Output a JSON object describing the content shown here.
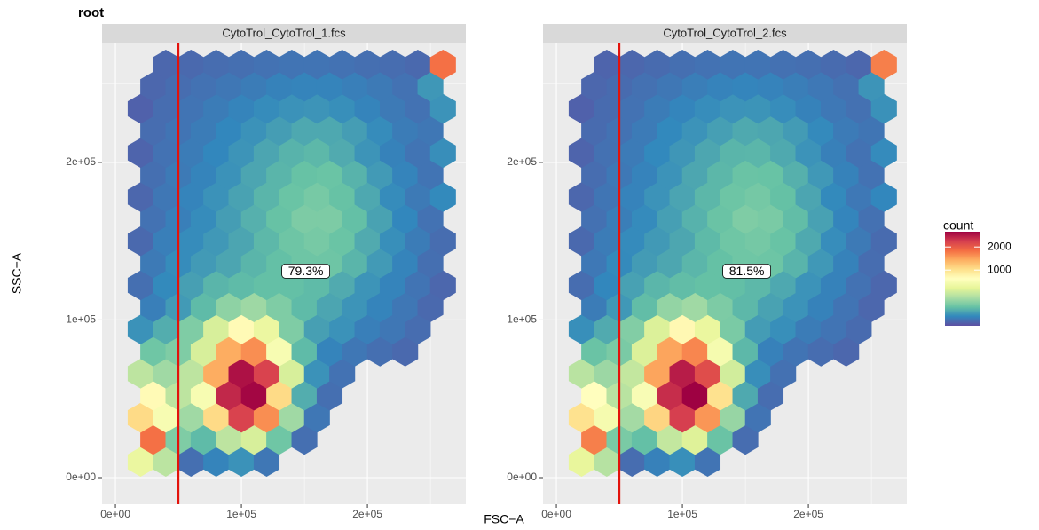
{
  "chart_data": {
    "type": "hexbin",
    "title": "root",
    "xlabel": "FSC−A",
    "ylabel": "SSC−A",
    "xlim": [
      -10600,
      278100
    ],
    "ylim": [
      -16900,
      276000
    ],
    "xticks": [
      {
        "value": 0,
        "label": "0e+00"
      },
      {
        "value": 100000,
        "label": "1e+05"
      },
      {
        "value": 200000,
        "label": "2e+05"
      }
    ],
    "yticks": [
      {
        "value": 0,
        "label": "0e+00"
      },
      {
        "value": 100000,
        "label": "1e+05"
      },
      {
        "value": 200000,
        "label": "2e+05"
      }
    ],
    "grid": true,
    "gate_x": 50000,
    "gate_color": "#e3120b",
    "legend_title": "count",
    "legend_position": "right",
    "fill_trans": "sqrt",
    "fill_lim": [
      0,
      2850
    ],
    "legend_ticks": [
      1000,
      2000
    ],
    "colors": [
      "#5e4fa2",
      "#3288bd",
      "#66c2a5",
      "#abdda4",
      "#e6f598",
      "#ffffbf",
      "#fee08b",
      "#fdae61",
      "#f46d43",
      "#d53e4f",
      "#9e0142"
    ],
    "hex_rows": [
      {
        "y": 10000,
        "x": [
          20000,
          40000,
          60000,
          80000,
          100000,
          120000
        ]
      },
      {
        "y": 24000,
        "x": [
          30000,
          50000,
          70000,
          90000,
          110000,
          130000,
          150000
        ]
      },
      {
        "y": 38000,
        "x": [
          20000,
          40000,
          60000,
          80000,
          100000,
          120000,
          140000,
          160000
        ]
      },
      {
        "y": 52000,
        "x": [
          30000,
          50000,
          70000,
          90000,
          110000,
          130000,
          150000,
          170000
        ]
      },
      {
        "y": 66000,
        "x": [
          20000,
          40000,
          60000,
          80000,
          100000,
          120000,
          140000,
          160000,
          180000
        ]
      },
      {
        "y": 80000,
        "x": [
          30000,
          50000,
          70000,
          90000,
          110000,
          130000,
          150000,
          170000,
          190000,
          210000,
          230000
        ]
      },
      {
        "y": 94000,
        "x": [
          20000,
          40000,
          60000,
          80000,
          100000,
          120000,
          140000,
          160000,
          180000,
          200000,
          220000,
          240000
        ]
      },
      {
        "y": 108000,
        "x": [
          30000,
          50000,
          70000,
          90000,
          110000,
          130000,
          150000,
          170000,
          190000,
          210000,
          230000,
          250000
        ]
      },
      {
        "y": 122000,
        "x": [
          20000,
          40000,
          60000,
          80000,
          100000,
          120000,
          140000,
          160000,
          180000,
          200000,
          220000,
          240000,
          260000
        ]
      },
      {
        "y": 136000,
        "x": [
          30000,
          50000,
          70000,
          90000,
          110000,
          130000,
          150000,
          170000,
          190000,
          210000,
          230000,
          250000
        ]
      },
      {
        "y": 150000,
        "x": [
          20000,
          40000,
          60000,
          80000,
          100000,
          120000,
          140000,
          160000,
          180000,
          200000,
          220000,
          240000,
          260000
        ]
      },
      {
        "y": 164000,
        "x": [
          30000,
          50000,
          70000,
          90000,
          110000,
          130000,
          150000,
          170000,
          190000,
          210000,
          230000,
          250000
        ]
      },
      {
        "y": 178000,
        "x": [
          20000,
          40000,
          60000,
          80000,
          100000,
          120000,
          140000,
          160000,
          180000,
          200000,
          220000,
          240000,
          260000
        ]
      },
      {
        "y": 192000,
        "x": [
          30000,
          50000,
          70000,
          90000,
          110000,
          130000,
          150000,
          170000,
          190000,
          210000,
          230000,
          250000
        ]
      },
      {
        "y": 206000,
        "x": [
          20000,
          40000,
          60000,
          80000,
          100000,
          120000,
          140000,
          160000,
          180000,
          200000,
          220000,
          240000,
          260000
        ]
      },
      {
        "y": 220000,
        "x": [
          30000,
          50000,
          70000,
          90000,
          110000,
          130000,
          150000,
          170000,
          190000,
          210000,
          230000,
          250000
        ]
      },
      {
        "y": 234000,
        "x": [
          20000,
          40000,
          60000,
          80000,
          100000,
          120000,
          140000,
          160000,
          180000,
          200000,
          220000,
          240000,
          260000
        ]
      },
      {
        "y": 248000,
        "x": [
          30000,
          50000,
          70000,
          90000,
          110000,
          130000,
          150000,
          170000,
          190000,
          210000,
          230000,
          250000
        ]
      },
      {
        "y": 262000,
        "x": [
          40000,
          60000,
          80000,
          100000,
          120000,
          140000,
          160000,
          180000,
          200000,
          220000,
          240000,
          260000
        ]
      }
    ],
    "panels": [
      {
        "title": "CytoTrol_CytoTrol_1.fcs",
        "gate_label": "79.3%",
        "values": [
          [
            506,
            306,
            9,
            25,
            39,
            14
          ],
          [
            1800,
            160,
            100,
            310,
            400,
            130,
            9
          ],
          [
            1060,
            620,
            230,
            1060,
            2250,
            1600,
            230,
            14
          ],
          [
            760,
            310,
            620,
            2500,
            2800,
            1060,
            77,
            9
          ],
          [
            310,
            230,
            310,
            1400,
            2700,
            2250,
            400,
            39,
            11
          ],
          [
            130,
            160,
            400,
            1400,
            1600,
            620,
            100,
            25,
            14,
            9,
            6
          ],
          [
            39,
            77,
            160,
            400,
            760,
            510,
            160,
            56,
            39,
            20,
            14,
            8
          ],
          [
            20,
            49,
            100,
            190,
            225,
            160,
            100,
            64,
            42,
            25,
            14,
            6
          ],
          [
            9,
            30,
            56,
            90,
            100,
            110,
            110,
            100,
            72,
            42,
            25,
            12,
            5
          ],
          [
            16,
            33,
            49,
            64,
            90,
            110,
            127,
            127,
            90,
            49,
            25,
            9
          ],
          [
            6,
            20,
            33,
            46,
            64,
            95,
            127,
            144,
            121,
            72,
            36,
            18,
            8
          ],
          [
            11,
            20,
            33,
            53,
            81,
            116,
            156,
            156,
            110,
            60,
            28,
            11
          ],
          [
            5,
            14,
            25,
            39,
            60,
            90,
            121,
            144,
            116,
            68,
            33,
            16,
            30
          ],
          [
            9,
            16,
            25,
            39,
            64,
            90,
            116,
            121,
            86,
            49,
            25,
            12
          ],
          [
            4,
            11,
            18,
            28,
            42,
            64,
            86,
            95,
            72,
            42,
            23,
            12,
            35
          ],
          [
            8,
            12,
            18,
            28,
            39,
            53,
            68,
            68,
            53,
            33,
            18,
            14
          ],
          [
            3,
            8,
            12,
            18,
            25,
            33,
            39,
            42,
            36,
            25,
            16,
            11,
            40
          ],
          [
            5,
            8,
            11,
            14,
            18,
            23,
            25,
            25,
            20,
            16,
            11,
            45
          ],
          [
            5,
            6,
            8,
            9,
            11,
            12,
            12,
            11,
            9,
            8,
            6,
            1800
          ]
        ]
      },
      {
        "title": "CytoTrol_CytoTrol_2.fcs",
        "gate_label": "81.5%",
        "values": [
          [
            480,
            290,
            8,
            22,
            36,
            12
          ],
          [
            1700,
            150,
            110,
            330,
            430,
            120,
            8
          ],
          [
            1000,
            600,
            240,
            1100,
            2300,
            1550,
            210,
            12
          ],
          [
            720,
            300,
            640,
            2450,
            2850,
            1000,
            70,
            8
          ],
          [
            300,
            220,
            330,
            1450,
            2600,
            2150,
            380,
            35,
            10
          ],
          [
            120,
            150,
            420,
            1450,
            1650,
            600,
            95,
            22,
            12,
            8,
            5
          ],
          [
            36,
            72,
            165,
            420,
            780,
            500,
            150,
            52,
            36,
            18,
            12,
            7
          ],
          [
            18,
            46,
            105,
            200,
            230,
            155,
            95,
            60,
            40,
            23,
            12,
            5
          ],
          [
            8,
            28,
            58,
            92,
            105,
            112,
            108,
            96,
            68,
            40,
            23,
            11,
            5
          ],
          [
            15,
            31,
            50,
            66,
            92,
            112,
            130,
            125,
            88,
            46,
            23,
            8
          ],
          [
            6,
            18,
            32,
            48,
            66,
            98,
            130,
            140,
            118,
            70,
            34,
            16,
            7
          ],
          [
            10,
            19,
            32,
            55,
            84,
            120,
            160,
            150,
            105,
            58,
            26,
            10
          ],
          [
            5,
            13,
            24,
            40,
            62,
            94,
            125,
            140,
            112,
            64,
            30,
            15,
            28
          ],
          [
            8,
            15,
            24,
            40,
            66,
            94,
            120,
            118,
            82,
            46,
            23,
            11
          ],
          [
            4,
            10,
            17,
            29,
            44,
            66,
            90,
            92,
            70,
            40,
            21,
            11,
            32
          ],
          [
            7,
            11,
            17,
            29,
            40,
            55,
            70,
            66,
            50,
            31,
            17,
            13
          ],
          [
            3,
            7,
            11,
            18,
            26,
            34,
            40,
            41,
            34,
            23,
            15,
            10,
            38
          ],
          [
            5,
            7,
            10,
            14,
            19,
            24,
            26,
            24,
            19,
            15,
            10,
            42
          ],
          [
            4,
            5,
            7,
            9,
            11,
            12,
            12,
            10,
            9,
            7,
            5,
            1700
          ]
        ]
      }
    ]
  }
}
